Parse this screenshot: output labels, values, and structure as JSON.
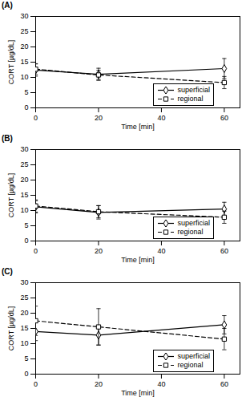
{
  "chart_data": [
    {
      "type": "line",
      "title": "(A)",
      "xlabel": "Time [min]",
      "ylabel": "CORT [µg/dL]",
      "x": [
        0,
        20,
        60
      ],
      "series": [
        {
          "name": "superficial",
          "color": "#000000",
          "marker": "diamond",
          "line_style": "solid",
          "values": [
            12.4,
            11.0,
            12.9
          ],
          "errors": [
            2.0,
            2.0,
            3.3
          ]
        },
        {
          "name": "regional",
          "color": "#000000",
          "marker": "square",
          "line_style": "dashed",
          "values": [
            12.7,
            10.8,
            8.3
          ],
          "errors": [
            1.8,
            1.5,
            2.0
          ]
        }
      ],
      "xlim": [
        0,
        65
      ],
      "xticks": [
        0,
        20,
        40,
        60
      ],
      "ylim": [
        0,
        30
      ],
      "yticks": [
        0,
        5,
        10,
        15,
        20,
        25,
        30
      ],
      "legend": "lower right"
    },
    {
      "type": "line",
      "title": "(B)",
      "xlabel": "Time [min]",
      "ylabel": "CORT [µg/dL]",
      "x": [
        0,
        20,
        60
      ],
      "series": [
        {
          "name": "superficial",
          "color": "#000000",
          "marker": "diamond",
          "line_style": "solid",
          "values": [
            11.2,
            9.4,
            10.5
          ],
          "errors": [
            2.0,
            2.2,
            2.2
          ]
        },
        {
          "name": "regional",
          "color": "#000000",
          "marker": "square",
          "line_style": "dashed",
          "values": [
            11.5,
            9.6,
            7.8
          ],
          "errors": [
            2.0,
            2.0,
            2.0
          ]
        }
      ],
      "xlim": [
        0,
        65
      ],
      "xticks": [
        0,
        20,
        40,
        60
      ],
      "ylim": [
        0,
        30
      ],
      "yticks": [
        0,
        5,
        10,
        15,
        20,
        25,
        30
      ],
      "legend": "lower right"
    },
    {
      "type": "line",
      "title": "(C)",
      "xlabel": "Time [min]",
      "ylabel": "CORT [µg/dL]",
      "x": [
        0,
        20,
        60
      ],
      "series": [
        {
          "name": "superficial",
          "color": "#000000",
          "marker": "diamond",
          "line_style": "solid",
          "values": [
            14.0,
            12.8,
            16.2
          ],
          "errors": [
            3.0,
            3.2,
            3.0
          ]
        },
        {
          "name": "regional",
          "color": "#000000",
          "marker": "square",
          "line_style": "dashed",
          "values": [
            17.5,
            15.5,
            11.5
          ],
          "errors": [
            4.8,
            6.0,
            3.5
          ]
        }
      ],
      "xlim": [
        0,
        65
      ],
      "xticks": [
        0,
        20,
        40,
        60
      ],
      "ylim": [
        0,
        30
      ],
      "yticks": [
        0,
        5,
        10,
        15,
        20,
        25,
        30
      ],
      "legend": "lower right"
    }
  ]
}
